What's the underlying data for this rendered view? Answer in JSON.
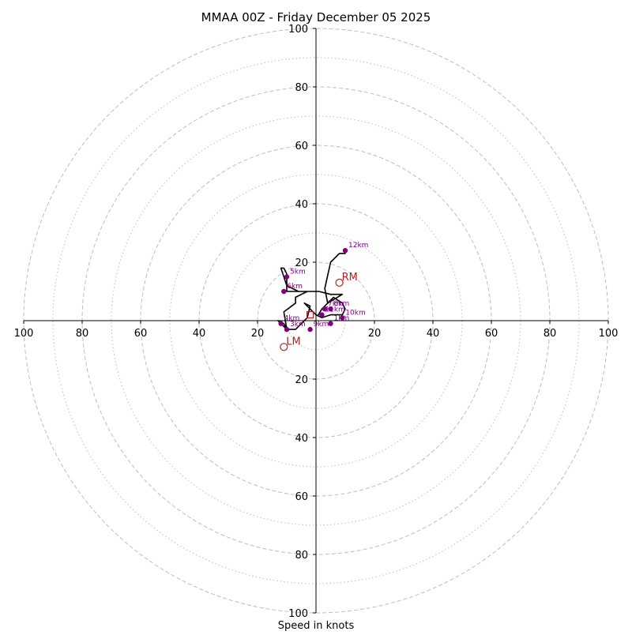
{
  "chart_data": {
    "type": "hodograph",
    "title": "MMAA 00Z - Friday December 05 2025",
    "xlabel": "Speed in knots",
    "axis_range": [
      -100,
      100
    ],
    "ring_major": [
      20,
      40,
      60,
      80,
      100
    ],
    "ring_minor": [
      10,
      30,
      50,
      70,
      90
    ],
    "tick_values": [
      100,
      80,
      60,
      40,
      20
    ],
    "colors": {
      "trace": "#000000",
      "height_marker": "#800080",
      "storm_motion": "#b22222",
      "ring": "#bdbdbd",
      "axis": "#000000"
    },
    "hodograph_trace": [
      [
        0.5,
        1.5
      ],
      [
        2,
        4
      ],
      [
        4,
        6
      ],
      [
        6,
        8
      ],
      [
        9,
        6
      ],
      [
        10,
        4
      ],
      [
        9,
        2
      ],
      [
        5,
        2
      ],
      [
        2,
        1
      ],
      [
        0,
        2
      ],
      [
        -1,
        3
      ],
      [
        -4,
        6
      ],
      [
        -2,
        5
      ],
      [
        -3,
        1
      ],
      [
        -5,
        -1
      ],
      [
        -7,
        -3
      ],
      [
        -10,
        -3
      ],
      [
        -12,
        -1
      ],
      [
        -13,
        0
      ],
      [
        -11,
        -1
      ],
      [
        -10,
        -3
      ],
      [
        -11,
        3
      ],
      [
        -7,
        6
      ],
      [
        -7,
        8
      ],
      [
        -5,
        9
      ],
      [
        -3,
        10
      ],
      [
        -10,
        10
      ],
      [
        -10,
        14
      ],
      [
        -10,
        16
      ],
      [
        -11,
        18
      ],
      [
        -12,
        18
      ],
      [
        -10,
        12
      ],
      [
        -6,
        10
      ],
      [
        1,
        10
      ],
      [
        5,
        9
      ],
      [
        9,
        9
      ],
      [
        4,
        6
      ],
      [
        3,
        11
      ],
      [
        5,
        20
      ],
      [
        8,
        23
      ],
      [
        10,
        23
      ],
      [
        10,
        24
      ]
    ],
    "height_markers": [
      {
        "label": "1km",
        "x": 5,
        "y": -1
      },
      {
        "label": "3km",
        "x": -10,
        "y": -3
      },
      {
        "label": "4km",
        "x": -12,
        "y": -1
      },
      {
        "label": "5km",
        "x": -10,
        "y": 15
      },
      {
        "label": "6km",
        "x": -11,
        "y": 10
      },
      {
        "label": "7km",
        "x": 3,
        "y": 4
      },
      {
        "label": "8km",
        "x": 5,
        "y": 4
      },
      {
        "label": "9km",
        "x": -2,
        "y": -3
      },
      {
        "label": "10km",
        "x": 9,
        "y": 1
      },
      {
        "label": "11km",
        "x": 2,
        "y": 2
      },
      {
        "label": "12km",
        "x": 10,
        "y": 24
      }
    ],
    "storm_motion": [
      {
        "label": "RM",
        "x": 8,
        "y": 13
      },
      {
        "label": "LM",
        "x": -11,
        "y": -9
      }
    ],
    "mean_wind": {
      "label": "",
      "x": -2,
      "y": 2
    }
  }
}
